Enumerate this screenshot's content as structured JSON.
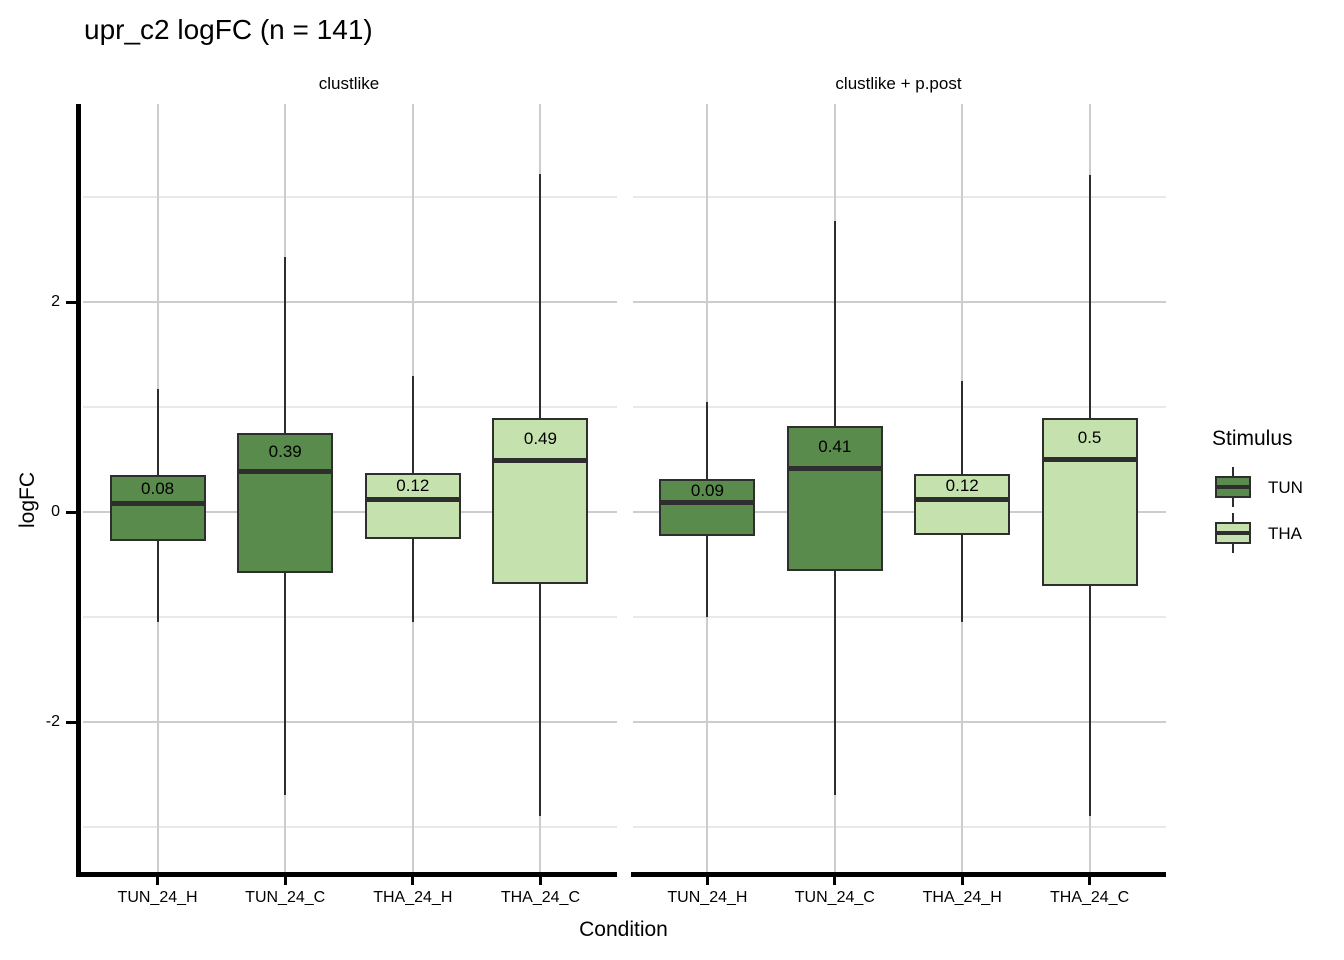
{
  "chart_data": {
    "type": "boxplot",
    "title": "upr_c2 logFC (n = 141)",
    "xlabel": "Condition",
    "ylabel": "logFC",
    "ylim": [
      -3.45,
      3.89
    ],
    "grid": true,
    "yticks": [
      {
        "v": 2,
        "label": "2"
      },
      {
        "v": 0,
        "label": "0"
      },
      {
        "v": -2,
        "label": "-2"
      }
    ],
    "major_gridlines": [
      2,
      0,
      -2
    ],
    "minor_gridlines": [
      3,
      1,
      -1,
      -3
    ],
    "categories": [
      "TUN_24_H",
      "TUN_24_C",
      "THA_24_H",
      "THA_24_C"
    ],
    "legend": {
      "title": "Stimulus",
      "position": "right",
      "entries": [
        {
          "label": "TUN",
          "color": "#598b4c"
        },
        {
          "label": "THA",
          "color": "#c5e2ae"
        }
      ]
    },
    "colors": {
      "TUN": "#598b4c",
      "THA": "#c5e2ae",
      "box_border": "#2e2e2e",
      "median_line": "#2e2e2e",
      "gridline_major": "#cdcdcd",
      "gridline_minor": "#e9e9e9",
      "axis": "#000000"
    },
    "facets": [
      {
        "label": "clustlike",
        "boxes": [
          {
            "category": "TUN_24_H",
            "stimulus": "TUN",
            "whisker_low": -1.05,
            "q1": -0.28,
            "median": 0.08,
            "q3": 0.35,
            "whisker_high": 1.17,
            "median_label": "0.08"
          },
          {
            "category": "TUN_24_C",
            "stimulus": "TUN",
            "whisker_low": -2.7,
            "q1": -0.58,
            "median": 0.39,
            "q3": 0.75,
            "whisker_high": 2.43,
            "median_label": "0.39"
          },
          {
            "category": "THA_24_H",
            "stimulus": "THA",
            "whisker_low": -1.05,
            "q1": -0.26,
            "median": 0.12,
            "q3": 0.37,
            "whisker_high": 1.3,
            "median_label": "0.12"
          },
          {
            "category": "THA_24_C",
            "stimulus": "THA",
            "whisker_low": -2.9,
            "q1": -0.69,
            "median": 0.49,
            "q3": 0.9,
            "whisker_high": 3.22,
            "median_label": "0.49"
          }
        ]
      },
      {
        "label": "clustlike + p.post",
        "boxes": [
          {
            "category": "TUN_24_H",
            "stimulus": "TUN",
            "whisker_low": -1.0,
            "q1": -0.23,
            "median": 0.09,
            "q3": 0.31,
            "whisker_high": 1.05,
            "median_label": "0.09"
          },
          {
            "category": "TUN_24_C",
            "stimulus": "TUN",
            "whisker_low": -2.7,
            "q1": -0.56,
            "median": 0.41,
            "q3": 0.82,
            "whisker_high": 2.77,
            "median_label": "0.41"
          },
          {
            "category": "THA_24_H",
            "stimulus": "THA",
            "whisker_low": -1.05,
            "q1": -0.22,
            "median": 0.12,
            "q3": 0.36,
            "whisker_high": 1.25,
            "median_label": "0.12"
          },
          {
            "category": "THA_24_C",
            "stimulus": "THA",
            "whisker_low": -2.9,
            "q1": -0.7,
            "median": 0.5,
            "q3": 0.9,
            "whisker_high": 3.21,
            "median_label": "0.5"
          }
        ]
      }
    ]
  }
}
